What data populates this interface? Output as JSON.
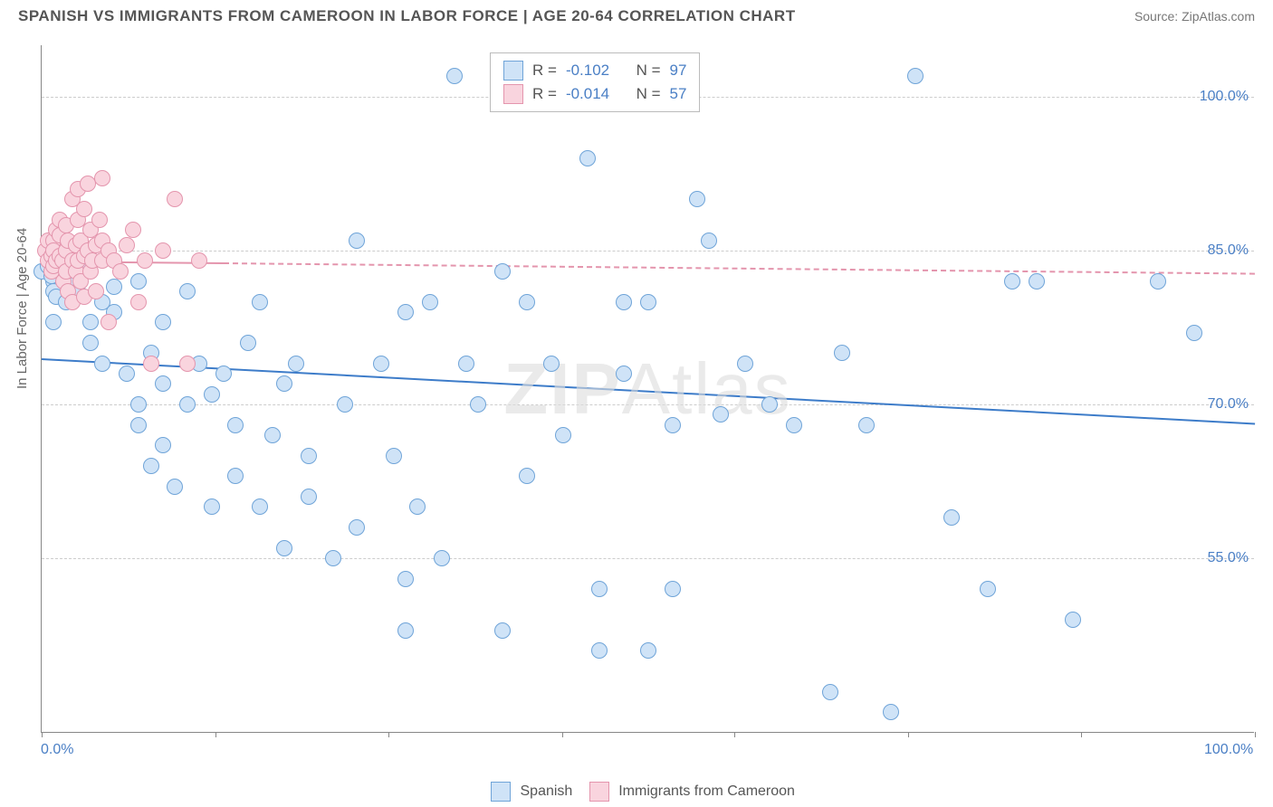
{
  "title": "SPANISH VS IMMIGRANTS FROM CAMEROON IN LABOR FORCE | AGE 20-64 CORRELATION CHART",
  "source_label": "Source:",
  "source_name": "ZipAtlas.com",
  "watermark_a": "ZIP",
  "watermark_b": "Atlas",
  "y_axis_label": "In Labor Force | Age 20-64",
  "chart": {
    "type": "scatter",
    "background_color": "#ffffff",
    "grid_color": "#cccccc",
    "axis_color": "#888888",
    "tick_label_color": "#4a7fc5",
    "text_color": "#555555",
    "x_range": [
      0,
      100
    ],
    "y_range": [
      38,
      105
    ],
    "x_ticks": [
      0,
      14.3,
      28.6,
      42.9,
      57.1,
      71.4,
      85.7,
      100
    ],
    "x_tick_labels": {
      "0": "0.0%",
      "100": "100.0%"
    },
    "y_gridlines": [
      55,
      70,
      85,
      100
    ],
    "y_tick_labels": {
      "55": "55.0%",
      "70": "70.0%",
      "85": "85.0%",
      "100": "100.0%"
    },
    "point_radius": 9,
    "point_border_width": 1.2,
    "series": [
      {
        "name": "Spanish",
        "fill": "#cfe3f7",
        "stroke": "#6fa4d8",
        "trend": {
          "y_at_x0": 74.5,
          "y_at_x100": 68.2,
          "color": "#3d7cc9",
          "width": 2.5,
          "solid_until_x": 100,
          "dash_from_x": 100
        },
        "R": "-0.102",
        "N": "97",
        "points": [
          [
            0,
            83
          ],
          [
            0.5,
            83.5
          ],
          [
            1,
            82
          ],
          [
            1,
            81
          ],
          [
            1.5,
            84
          ],
          [
            0.8,
            82.5
          ],
          [
            1.2,
            80.5
          ],
          [
            2,
            83
          ],
          [
            2,
            80
          ],
          [
            2.5,
            85
          ],
          [
            1,
            78
          ],
          [
            3,
            82
          ],
          [
            3,
            81
          ],
          [
            3.5,
            84
          ],
          [
            4,
            78
          ],
          [
            4,
            76
          ],
          [
            5,
            74
          ],
          [
            5,
            80
          ],
          [
            6,
            79
          ],
          [
            6,
            81.5
          ],
          [
            7,
            73
          ],
          [
            8,
            82
          ],
          [
            8,
            70
          ],
          [
            8,
            68
          ],
          [
            9,
            75
          ],
          [
            9,
            64
          ],
          [
            10,
            78
          ],
          [
            10,
            72
          ],
          [
            10,
            66
          ],
          [
            11,
            62
          ],
          [
            12,
            81
          ],
          [
            12,
            70
          ],
          [
            13,
            74
          ],
          [
            14,
            71
          ],
          [
            14,
            60
          ],
          [
            15,
            73
          ],
          [
            16,
            68
          ],
          [
            16,
            63
          ],
          [
            17,
            76
          ],
          [
            18,
            60
          ],
          [
            18,
            80
          ],
          [
            19,
            67
          ],
          [
            20,
            56
          ],
          [
            20,
            72
          ],
          [
            21,
            74
          ],
          [
            22,
            65
          ],
          [
            22,
            61
          ],
          [
            24,
            55
          ],
          [
            25,
            70
          ],
          [
            26,
            86
          ],
          [
            26,
            58
          ],
          [
            28,
            74
          ],
          [
            29,
            65
          ],
          [
            30,
            79
          ],
          [
            30,
            53
          ],
          [
            30,
            48
          ],
          [
            31,
            60
          ],
          [
            32,
            80
          ],
          [
            33,
            55
          ],
          [
            34,
            102
          ],
          [
            35,
            74
          ],
          [
            36,
            70
          ],
          [
            38,
            83
          ],
          [
            38,
            48
          ],
          [
            40,
            63
          ],
          [
            40,
            80
          ],
          [
            42,
            74
          ],
          [
            42,
            102
          ],
          [
            43,
            67
          ],
          [
            45,
            94
          ],
          [
            46,
            52
          ],
          [
            46,
            46
          ],
          [
            48,
            80
          ],
          [
            48,
            73
          ],
          [
            48,
            102
          ],
          [
            50,
            80
          ],
          [
            50,
            46
          ],
          [
            52,
            68
          ],
          [
            52,
            52
          ],
          [
            54,
            90
          ],
          [
            55,
            86
          ],
          [
            56,
            69
          ],
          [
            58,
            74
          ],
          [
            60,
            70
          ],
          [
            62,
            68
          ],
          [
            65,
            42
          ],
          [
            66,
            75
          ],
          [
            68,
            68
          ],
          [
            70,
            40
          ],
          [
            72,
            102
          ],
          [
            75,
            59
          ],
          [
            78,
            52
          ],
          [
            80,
            82
          ],
          [
            82,
            82
          ],
          [
            85,
            49
          ],
          [
            92,
            82
          ],
          [
            95,
            77
          ]
        ]
      },
      {
        "name": "Immigrants from Cameroon",
        "fill": "#f9d4de",
        "stroke": "#e495ad",
        "trend": {
          "y_at_x0": 84,
          "y_at_x100": 82.8,
          "color": "#e495ad",
          "width": 2,
          "solid_until_x": 15,
          "dash_from_x": 15
        },
        "R": "-0.014",
        "N": "57",
        "points": [
          [
            0.3,
            85
          ],
          [
            0.5,
            84
          ],
          [
            0.5,
            86
          ],
          [
            0.8,
            84.5
          ],
          [
            0.8,
            83
          ],
          [
            1,
            86
          ],
          [
            1,
            85
          ],
          [
            1,
            83.5
          ],
          [
            1.2,
            87
          ],
          [
            1.2,
            84
          ],
          [
            1.5,
            84.5
          ],
          [
            1.5,
            86.5
          ],
          [
            1.5,
            88
          ],
          [
            1.7,
            84
          ],
          [
            1.8,
            82
          ],
          [
            2,
            85
          ],
          [
            2,
            83
          ],
          [
            2,
            87.5
          ],
          [
            2.2,
            86
          ],
          [
            2.2,
            81
          ],
          [
            2.5,
            84
          ],
          [
            2.5,
            80
          ],
          [
            2.5,
            90
          ],
          [
            2.8,
            85.5
          ],
          [
            2.8,
            83
          ],
          [
            3,
            84
          ],
          [
            3,
            88
          ],
          [
            3,
            91
          ],
          [
            3.2,
            86
          ],
          [
            3.2,
            82
          ],
          [
            3.5,
            89
          ],
          [
            3.5,
            80.5
          ],
          [
            3.5,
            84.5
          ],
          [
            3.8,
            85
          ],
          [
            3.8,
            91.5
          ],
          [
            4,
            83
          ],
          [
            4,
            87
          ],
          [
            4.2,
            84
          ],
          [
            4.5,
            85.5
          ],
          [
            4.5,
            81
          ],
          [
            4.8,
            88
          ],
          [
            5,
            84
          ],
          [
            5,
            86
          ],
          [
            5,
            92
          ],
          [
            5.5,
            85
          ],
          [
            5.5,
            78
          ],
          [
            6,
            84
          ],
          [
            6.5,
            83
          ],
          [
            7,
            85.5
          ],
          [
            7.5,
            87
          ],
          [
            8,
            80
          ],
          [
            8.5,
            84
          ],
          [
            9,
            74
          ],
          [
            10,
            85
          ],
          [
            11,
            90
          ],
          [
            12,
            74
          ],
          [
            13,
            84
          ]
        ]
      }
    ]
  },
  "legend_stats": {
    "r_label": "R =",
    "n_label": "N ="
  },
  "legend_bottom": {
    "items": [
      "Spanish",
      "Immigrants from Cameroon"
    ]
  }
}
